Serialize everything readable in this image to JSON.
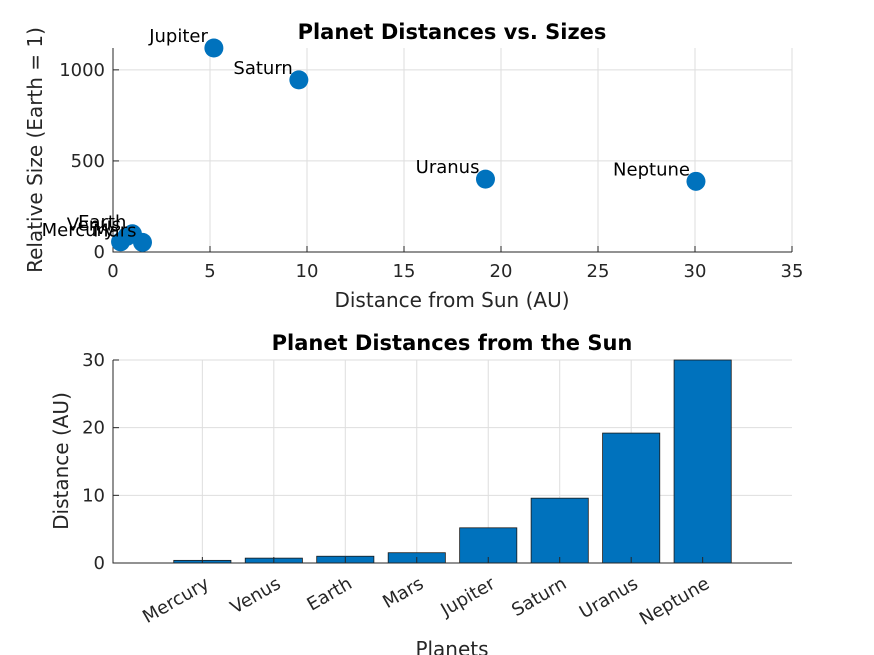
{
  "chart_data": [
    {
      "type": "scatter",
      "title": "Planet Distances vs. Sizes",
      "xlabel": "Distance from Sun (AU)",
      "ylabel": "Relative Size (Earth = 1)",
      "xlim": [
        0,
        35
      ],
      "ylim": [
        0,
        1120
      ],
      "xticks": [
        0,
        5,
        10,
        15,
        20,
        25,
        30,
        35
      ],
      "yticks": [
        0,
        500,
        1000
      ],
      "grid": true,
      "color": "#0072BD",
      "points": [
        {
          "label": "Mercury",
          "x": 0.39,
          "y": 56
        },
        {
          "label": "Venus",
          "x": 0.72,
          "y": 86
        },
        {
          "label": "Earth",
          "x": 1.0,
          "y": 100
        },
        {
          "label": "Mars",
          "x": 1.52,
          "y": 53
        },
        {
          "label": "Jupiter",
          "x": 5.2,
          "y": 1120
        },
        {
          "label": "Saturn",
          "x": 9.58,
          "y": 945
        },
        {
          "label": "Uranus",
          "x": 19.2,
          "y": 400
        },
        {
          "label": "Neptune",
          "x": 30.05,
          "y": 388
        }
      ]
    },
    {
      "type": "bar",
      "title": "Planet Distances from the Sun",
      "xlabel": "Planets",
      "ylabel": "Distance (AU)",
      "ylim": [
        0,
        30
      ],
      "yticks": [
        0,
        10,
        20,
        30
      ],
      "grid": true,
      "color": "#0072BD",
      "categories": [
        "Mercury",
        "Venus",
        "Earth",
        "Mars",
        "Jupiter",
        "Saturn",
        "Uranus",
        "Neptune"
      ],
      "values": [
        0.39,
        0.72,
        1.0,
        1.52,
        5.2,
        9.58,
        19.2,
        30.05
      ]
    }
  ]
}
